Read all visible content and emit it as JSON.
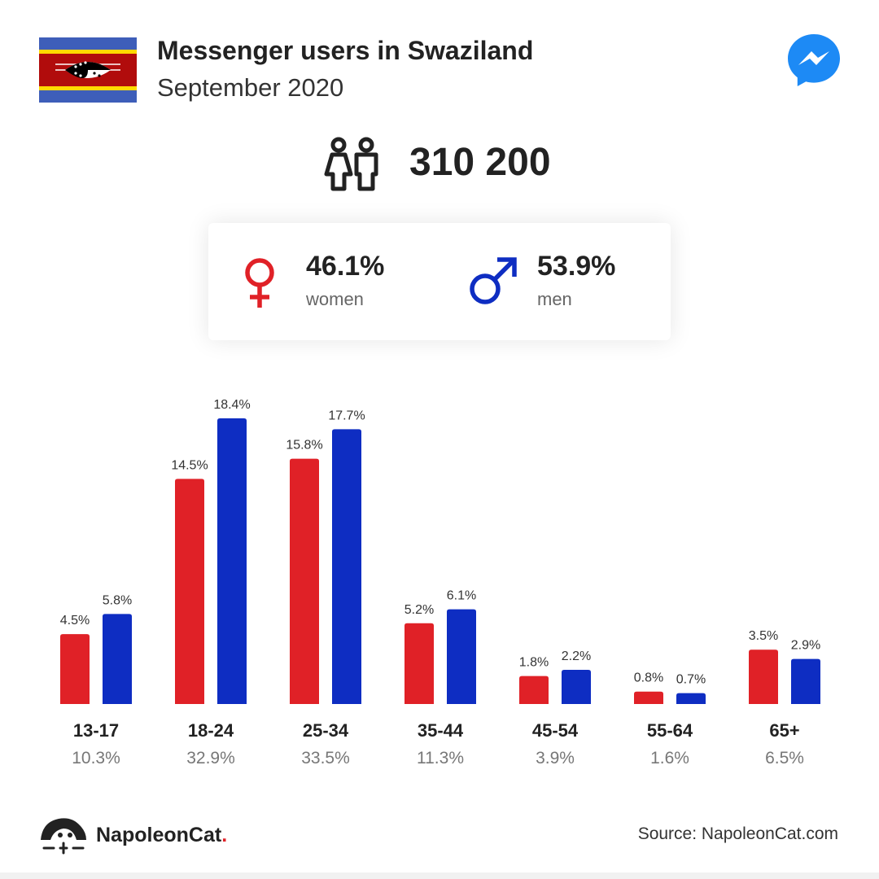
{
  "header": {
    "title": "Messenger users in Swaziland",
    "subtitle": "September 2020",
    "flag_icon": "swaziland-flag-icon",
    "app_icon": "messenger-logo-icon"
  },
  "total": {
    "icon": "people-icon",
    "value": "310 200"
  },
  "gender": {
    "women": {
      "icon": "female-symbol-icon",
      "pct": "46.1%",
      "label": "women"
    },
    "men": {
      "icon": "male-symbol-icon",
      "pct": "53.9%",
      "label": "men"
    }
  },
  "colors": {
    "women": "#e02127",
    "men": "#0e2dc2",
    "text": "#222222",
    "muted": "#666666"
  },
  "chart_data": {
    "type": "bar",
    "categories": [
      "13-17",
      "18-24",
      "25-34",
      "35-44",
      "45-54",
      "55-64",
      "65+"
    ],
    "category_totals": [
      "10.3%",
      "32.9%",
      "33.5%",
      "11.3%",
      "3.9%",
      "1.6%",
      "6.5%"
    ],
    "series": [
      {
        "values": [
          4.5,
          14.5,
          15.8,
          5.2,
          1.8,
          0.8,
          3.5
        ],
        "labels": [
          "4.5%",
          "14.5%",
          "15.8%",
          "5.2%",
          "1.8%",
          "0.8%",
          "3.5%"
        ],
        "color": "#e02127"
      },
      {
        "values": [
          5.8,
          18.4,
          17.7,
          6.1,
          2.2,
          0.7,
          2.9
        ],
        "labels": [
          "5.8%",
          "18.4%",
          "17.7%",
          "6.1%",
          "2.2%",
          "0.7%",
          "2.9%"
        ],
        "color": "#0e2dc2"
      }
    ],
    "ylim": [
      0,
      18.4
    ],
    "grid": false
  },
  "footer": {
    "brand_icon": "napoleoncat-logo-icon",
    "brand_name": "NapoleonCat",
    "brand_dot": ".",
    "source": "Source: NapoleonCat.com"
  }
}
